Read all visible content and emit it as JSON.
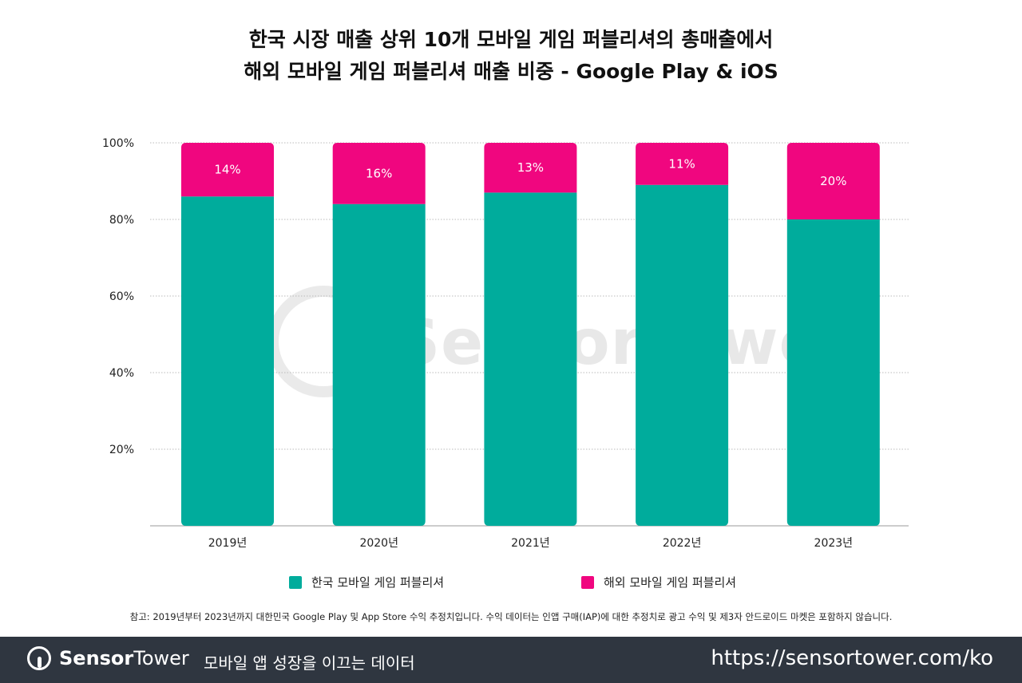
{
  "chart_data": {
    "type": "bar",
    "stacked": true,
    "title": [
      "한국 시장 매출 상위 10개 모바일 게임 퍼블리셔의 총매출에서",
      "해외 모바일 게임 퍼블리셔 매출 비중 - Google Play & iOS"
    ],
    "categories": [
      "2019년",
      "2020년",
      "2021년",
      "2022년",
      "2023년"
    ],
    "series": [
      {
        "name": "한국 모바일 게임 퍼블리셔",
        "values": [
          86,
          84,
          87,
          89,
          80
        ],
        "color": "#00ac9c"
      },
      {
        "name": "해외 모바일 게임 퍼블리셔",
        "values": [
          14,
          16,
          13,
          11,
          20
        ],
        "color": "#f0067f"
      }
    ],
    "data_labels": [
      "14%",
      "16%",
      "13%",
      "11%",
      "20%"
    ],
    "yticks": [
      "20%",
      "40%",
      "60%",
      "80%",
      "100%"
    ],
    "ylim": [
      0,
      100
    ],
    "grid": true,
    "legend": "bottom"
  },
  "watermark": "SensorTower",
  "note": "참고: 2019년부터 2023년까지 대한민국 Google Play 및 App Store 수익 추정치입니다. 수익 데이터는 인앱 구매(IAP)에 대한 추정치로 광고 수익 및 제3자 안드로이드 마켓은 포함하지 않습니다.",
  "footer": {
    "brand_bold": "Sensor",
    "brand_light": "Tower",
    "tagline": "모바일 앱 성장을 이끄는 데이터",
    "url": "https://sensortower.com/ko"
  }
}
